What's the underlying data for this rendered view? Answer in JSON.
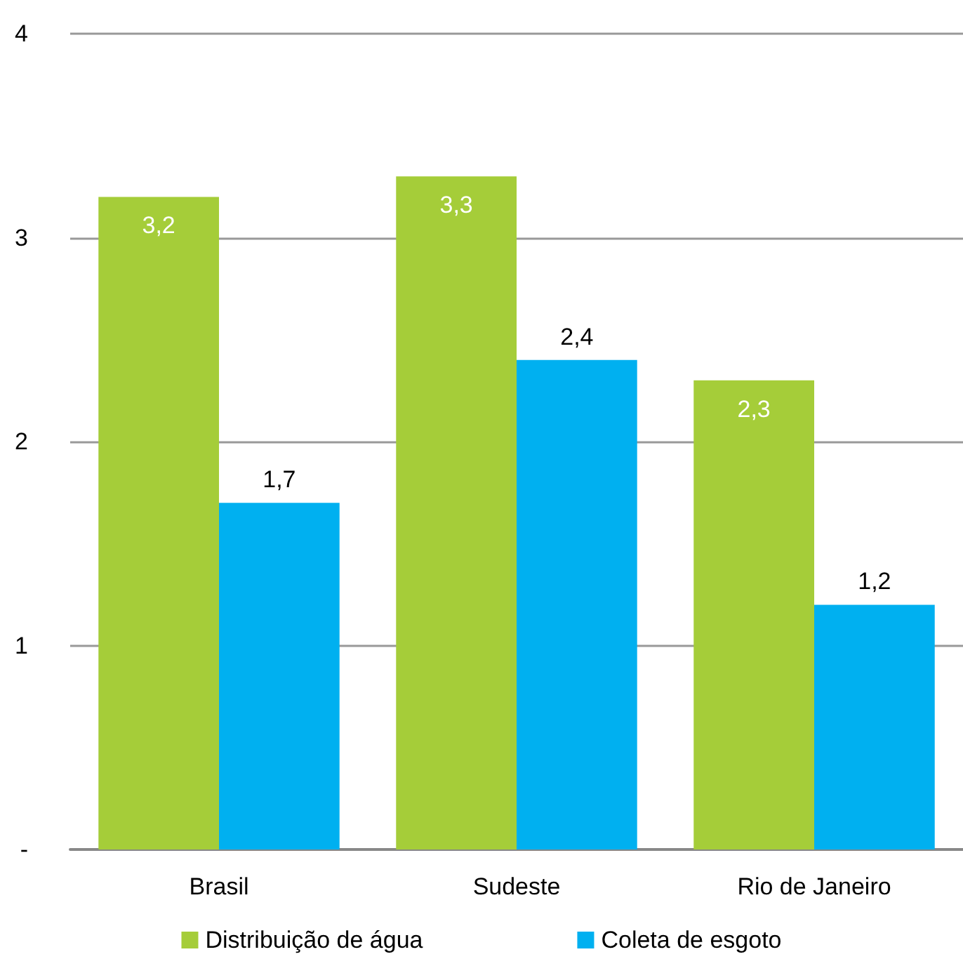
{
  "chart_data": {
    "type": "bar",
    "categories": [
      "Brasil",
      "Sudeste",
      "Rio de Janeiro"
    ],
    "series": [
      {
        "name": "Distribuição de água",
        "color": "#a5cd39",
        "values": [
          3.2,
          3.3,
          2.3
        ],
        "value_labels": [
          "3,2",
          "3,3",
          "2,3"
        ]
      },
      {
        "name": "Coleta de esgoto",
        "color": "#00b0f0",
        "values": [
          1.7,
          2.4,
          1.2
        ],
        "value_labels": [
          "1,7",
          "2,4",
          "1,2"
        ]
      }
    ],
    "ylim": [
      0,
      4
    ],
    "yticks": [
      {
        "value": 0,
        "label": "-"
      },
      1,
      2,
      3,
      4
    ],
    "grid": "y",
    "legend": "bottom"
  }
}
